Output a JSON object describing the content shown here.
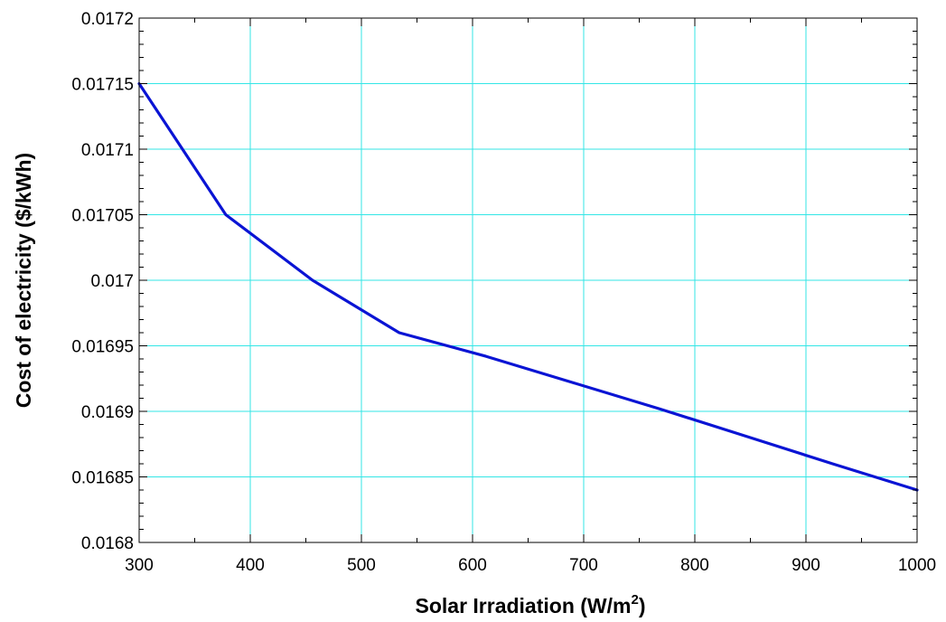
{
  "chart_data": {
    "type": "line",
    "title": "",
    "xlabel": "Solar Irradiation (W/m",
    "xlabel_superscript": "2",
    "xlabel_suffix": ")",
    "ylabel": "Cost of electricity  ($/kWh)",
    "xlim": [
      300,
      1000
    ],
    "ylim": [
      0.0168,
      0.0172
    ],
    "x_ticks": [
      300,
      400,
      500,
      600,
      700,
      800,
      900,
      1000
    ],
    "y_ticks": [
      0.0168,
      0.01685,
      0.0169,
      0.01695,
      0.017,
      0.01705,
      0.0171,
      0.01715,
      0.0172
    ],
    "x_tick_labels": [
      "300",
      "400",
      "500",
      "600",
      "700",
      "800",
      "900",
      "1000"
    ],
    "y_tick_labels": [
      "0.0168",
      "0.01685",
      "0.0169",
      "0.01695",
      "0.017",
      "0.01705",
      "0.0171",
      "0.01715",
      "0.0172"
    ],
    "grid": true,
    "grid_color": "#33e6e6",
    "series": [
      {
        "color": "#0a14d4",
        "x": [
          300,
          378,
          456,
          534,
          612,
          690,
          768,
          846,
          924,
          1000
        ],
        "y": [
          0.01715,
          0.01705,
          0.017,
          0.01696,
          0.016942,
          0.016922,
          0.016902,
          0.016881,
          0.01686,
          0.01684
        ]
      }
    ]
  }
}
